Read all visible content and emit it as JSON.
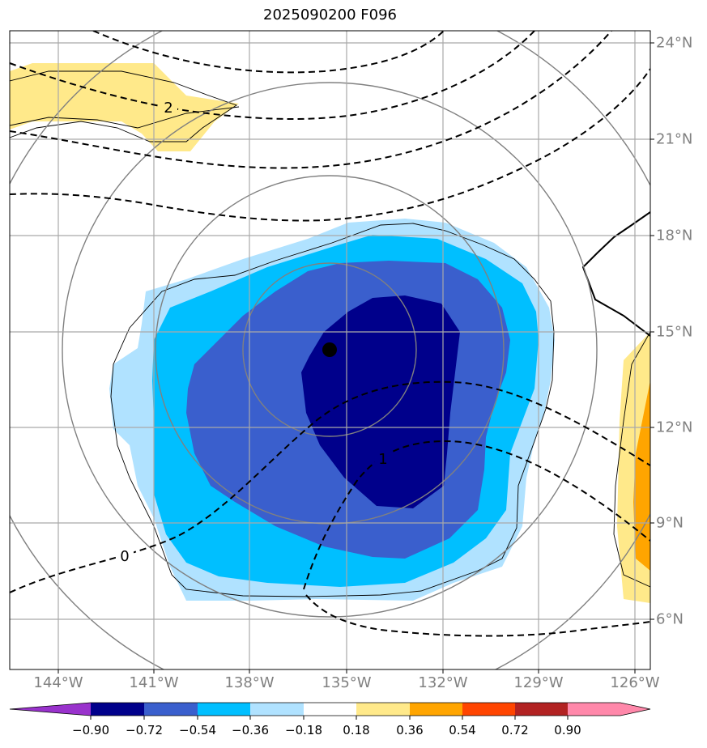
{
  "title": "2025090200 F096",
  "lon_labels": [
    "144°W",
    "141°W",
    "138°W",
    "135°W",
    "132°W",
    "129°W",
    "126°W"
  ],
  "lat_labels": [
    "24°N",
    "21°N",
    "18°N",
    "15°N",
    "12°N",
    "9°N",
    "6°N"
  ],
  "contour_labels": [
    "2",
    "0",
    "1"
  ],
  "colorbar": {
    "tick_labels": [
      "−0.90",
      "−0.72",
      "−0.54",
      "−0.36",
      "−0.18",
      "0.18",
      "0.36",
      "0.54",
      "0.72",
      "0.90"
    ],
    "colors": [
      "#9932cc",
      "#00008b",
      "#3a5fcd",
      "#00bfff",
      "#b0e2ff",
      "#ffffff",
      "#ffe98a",
      "#ffa500",
      "#ff4500",
      "#b22222",
      "#ff88aa"
    ]
  },
  "storm_center": {
    "lon": -135.5,
    "lat": 14.5
  }
}
